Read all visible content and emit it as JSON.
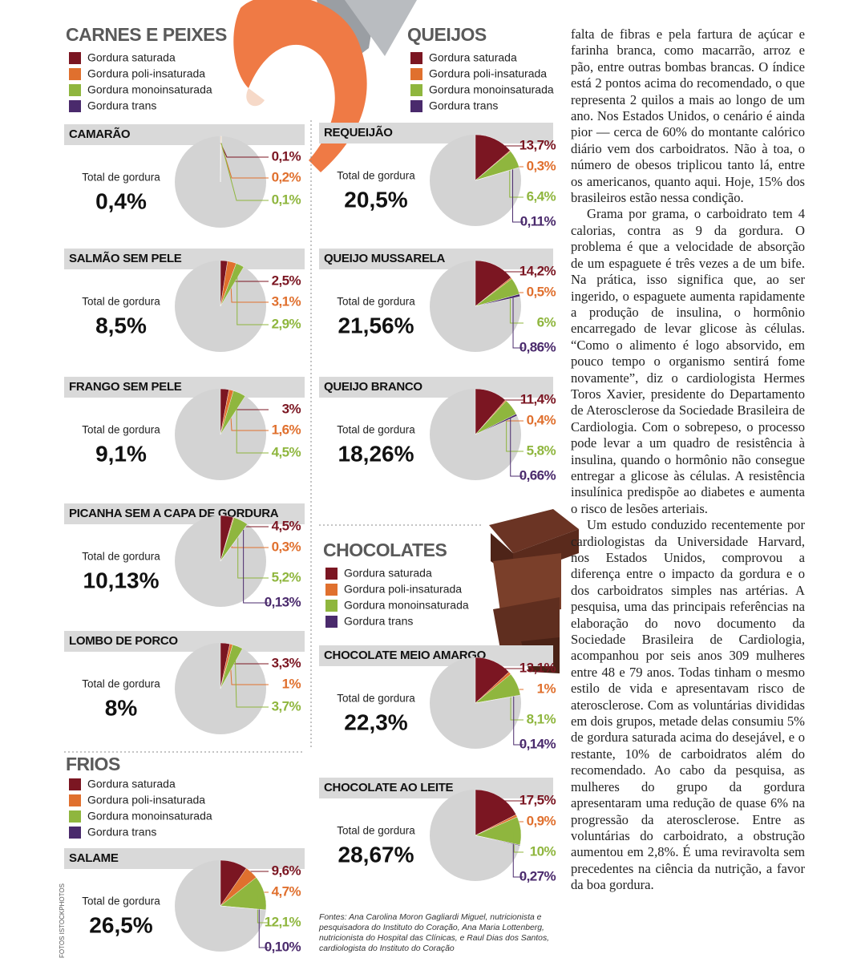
{
  "legend": [
    {
      "name": "Gordura saturada",
      "color": "#7b1622"
    },
    {
      "name": "Gordura poli-insaturada",
      "color": "#e0702e"
    },
    {
      "name": "Gordura monoinsaturada",
      "color": "#8fb63e"
    },
    {
      "name": "Gordura trans",
      "color": "#4a2a6c"
    }
  ],
  "total_text": "Total de gordura",
  "sections": [
    {
      "title": "CARNES E PEIXES",
      "items": [
        {
          "name": "CAMARÃO",
          "total": "0,4%",
          "values": [
            0.1,
            0.2,
            0.1
          ],
          "value_labels": [
            "0,1%",
            "0,2%",
            "0,1%"
          ]
        },
        {
          "name": "SALMÃO SEM PELE",
          "total": "8,5%",
          "values": [
            2.5,
            3.1,
            2.9
          ],
          "value_labels": [
            "2,5%",
            "3,1%",
            "2,9%"
          ]
        },
        {
          "name": "FRANGO SEM PELE",
          "total": "9,1%",
          "values": [
            3,
            1.6,
            4.5
          ],
          "value_labels": [
            "3%",
            "1,6%",
            "4,5%"
          ]
        },
        {
          "name": "PICANHA SEM A CAPA DE GORDURA",
          "total": "10,13%",
          "values": [
            4.5,
            0.3,
            5.2,
            0.13
          ],
          "value_labels": [
            "4,5%",
            "0,3%",
            "5,2%",
            "0,13%"
          ]
        },
        {
          "name": "LOMBO DE PORCO",
          "total": "8%",
          "values": [
            3.3,
            1,
            3.7
          ],
          "value_labels": [
            "3,3%",
            "1%",
            "3,7%"
          ]
        }
      ]
    },
    {
      "title": "FRIOS",
      "items": [
        {
          "name": "SALAME",
          "total": "26,5%",
          "values": [
            9.6,
            4.7,
            12.1,
            0.1
          ],
          "value_labels": [
            "9,6%",
            "4,7%",
            "12,1%",
            "0,10%"
          ]
        }
      ]
    },
    {
      "title": "QUEIJOS",
      "items": [
        {
          "name": "REQUEIJÃO",
          "total": "20,5%",
          "values": [
            13.7,
            0.3,
            6.4,
            0.11
          ],
          "value_labels": [
            "13,7%",
            "0,3%",
            "6,4%",
            "0,11%"
          ]
        },
        {
          "name": "QUEIJO MUSSARELA",
          "total": "21,56%",
          "values": [
            14.2,
            0.5,
            6,
            0.86
          ],
          "value_labels": [
            "14,2%",
            "0,5%",
            "6%",
            "0,86%"
          ]
        },
        {
          "name": "QUEIJO BRANCO",
          "total": "18,26%",
          "values": [
            11.4,
            0.4,
            5.8,
            0.66
          ],
          "value_labels": [
            "11,4%",
            "0,4%",
            "5,8%",
            "0,66%"
          ]
        }
      ]
    },
    {
      "title": "CHOCOLATES",
      "items": [
        {
          "name": "CHOCOLATE MEIO AMARGO",
          "total": "22,3%",
          "values": [
            13.1,
            1,
            8.1,
            0.14
          ],
          "value_labels": [
            "13,1%",
            "1%",
            "8,1%",
            "0,14%"
          ]
        },
        {
          "name": "CHOCOLATE AO LEITE",
          "total": "28,67%",
          "values": [
            17.5,
            0.9,
            10,
            0.27
          ],
          "value_labels": [
            "17,5%",
            "0,9%",
            "10%",
            "0,27%"
          ]
        }
      ]
    }
  ],
  "article": {
    "paragraphs": [
      "falta de fibras e pela fartura de açúcar e farinha branca, como macarrão, arroz e pão, entre outras bombas brancas. O índice está 2 pontos acima do recomendado, o que representa 2 quilos a mais ao longo de um ano. Nos Estados Unidos, o cenário é ainda pior — cerca de 60% do montante calórico diário vem dos carboidratos. Não à toa, o número de obesos triplicou tanto lá, entre os americanos, quanto aqui. Hoje, 15% dos brasileiros estão nessa condição.",
      "Grama por grama, o carboidrato tem 4 calorias, contra as 9 da gordura. O problema é que a velocidade de absorção de um espaguete é três vezes a de um bife. Na prática, isso significa que, ao ser ingerido, o espaguete aumenta rapidamente a produção de insulina, o hormônio encarregado de levar glicose às células. “Como o alimento é logo absorvido, em pouco tempo o organismo sentirá fome novamente”, diz o cardiologista Hermes Toros Xavier, presidente do Departamento de Aterosclerose da Sociedade Brasileira de Cardiologia. Com o sobrepeso, o processo pode levar a um quadro de resistência à insulina, quando o hormônio não consegue entregar a glicose às células. A resistência insulínica predispõe ao diabetes e aumenta o risco de lesões arteriais.",
      "Um estudo conduzido recentemente por cardiologistas da Universidade Harvard, nos Estados Unidos, comprovou a diferença entre o impacto da gordura e o dos carboidratos simples nas artérias. A pesquisa, uma das principais referências na elaboração do novo documento da Sociedade Brasileira de Cardiologia, acompanhou por seis anos 309 mulheres entre 48 e 79 anos. Todas tinham o mesmo estilo de vida e apresentavam risco de aterosclerose. Com as voluntárias divididas em dois grupos, metade delas consumiu 5% de gordura saturada acima do desejável, e o restante, 10% de carboidratos além do recomendado. Ao cabo da pesquisa, as mulheres do grupo da gordura apresentaram uma redução de quase 6% na progressão da aterosclerose. Entre as voluntárias do carboidrato, a obstrução aumentou em 2,8%. É uma reviravolta sem precedentes na ciência da nutrição, a favor da boa gordura."
    ]
  },
  "sources": "Fontes: Ana Carolina Moron Gagliardi Miguel, nutricionista e pesquisadora do Instituto do Coração, Ana Maria Lottenberg, nutricionista do Hospital das Clínicas, e Raul Dias dos Santos, cardiologista do Instituto do Coração",
  "photo_credit": "FOTOS ISTOCKPHOTOS"
}
